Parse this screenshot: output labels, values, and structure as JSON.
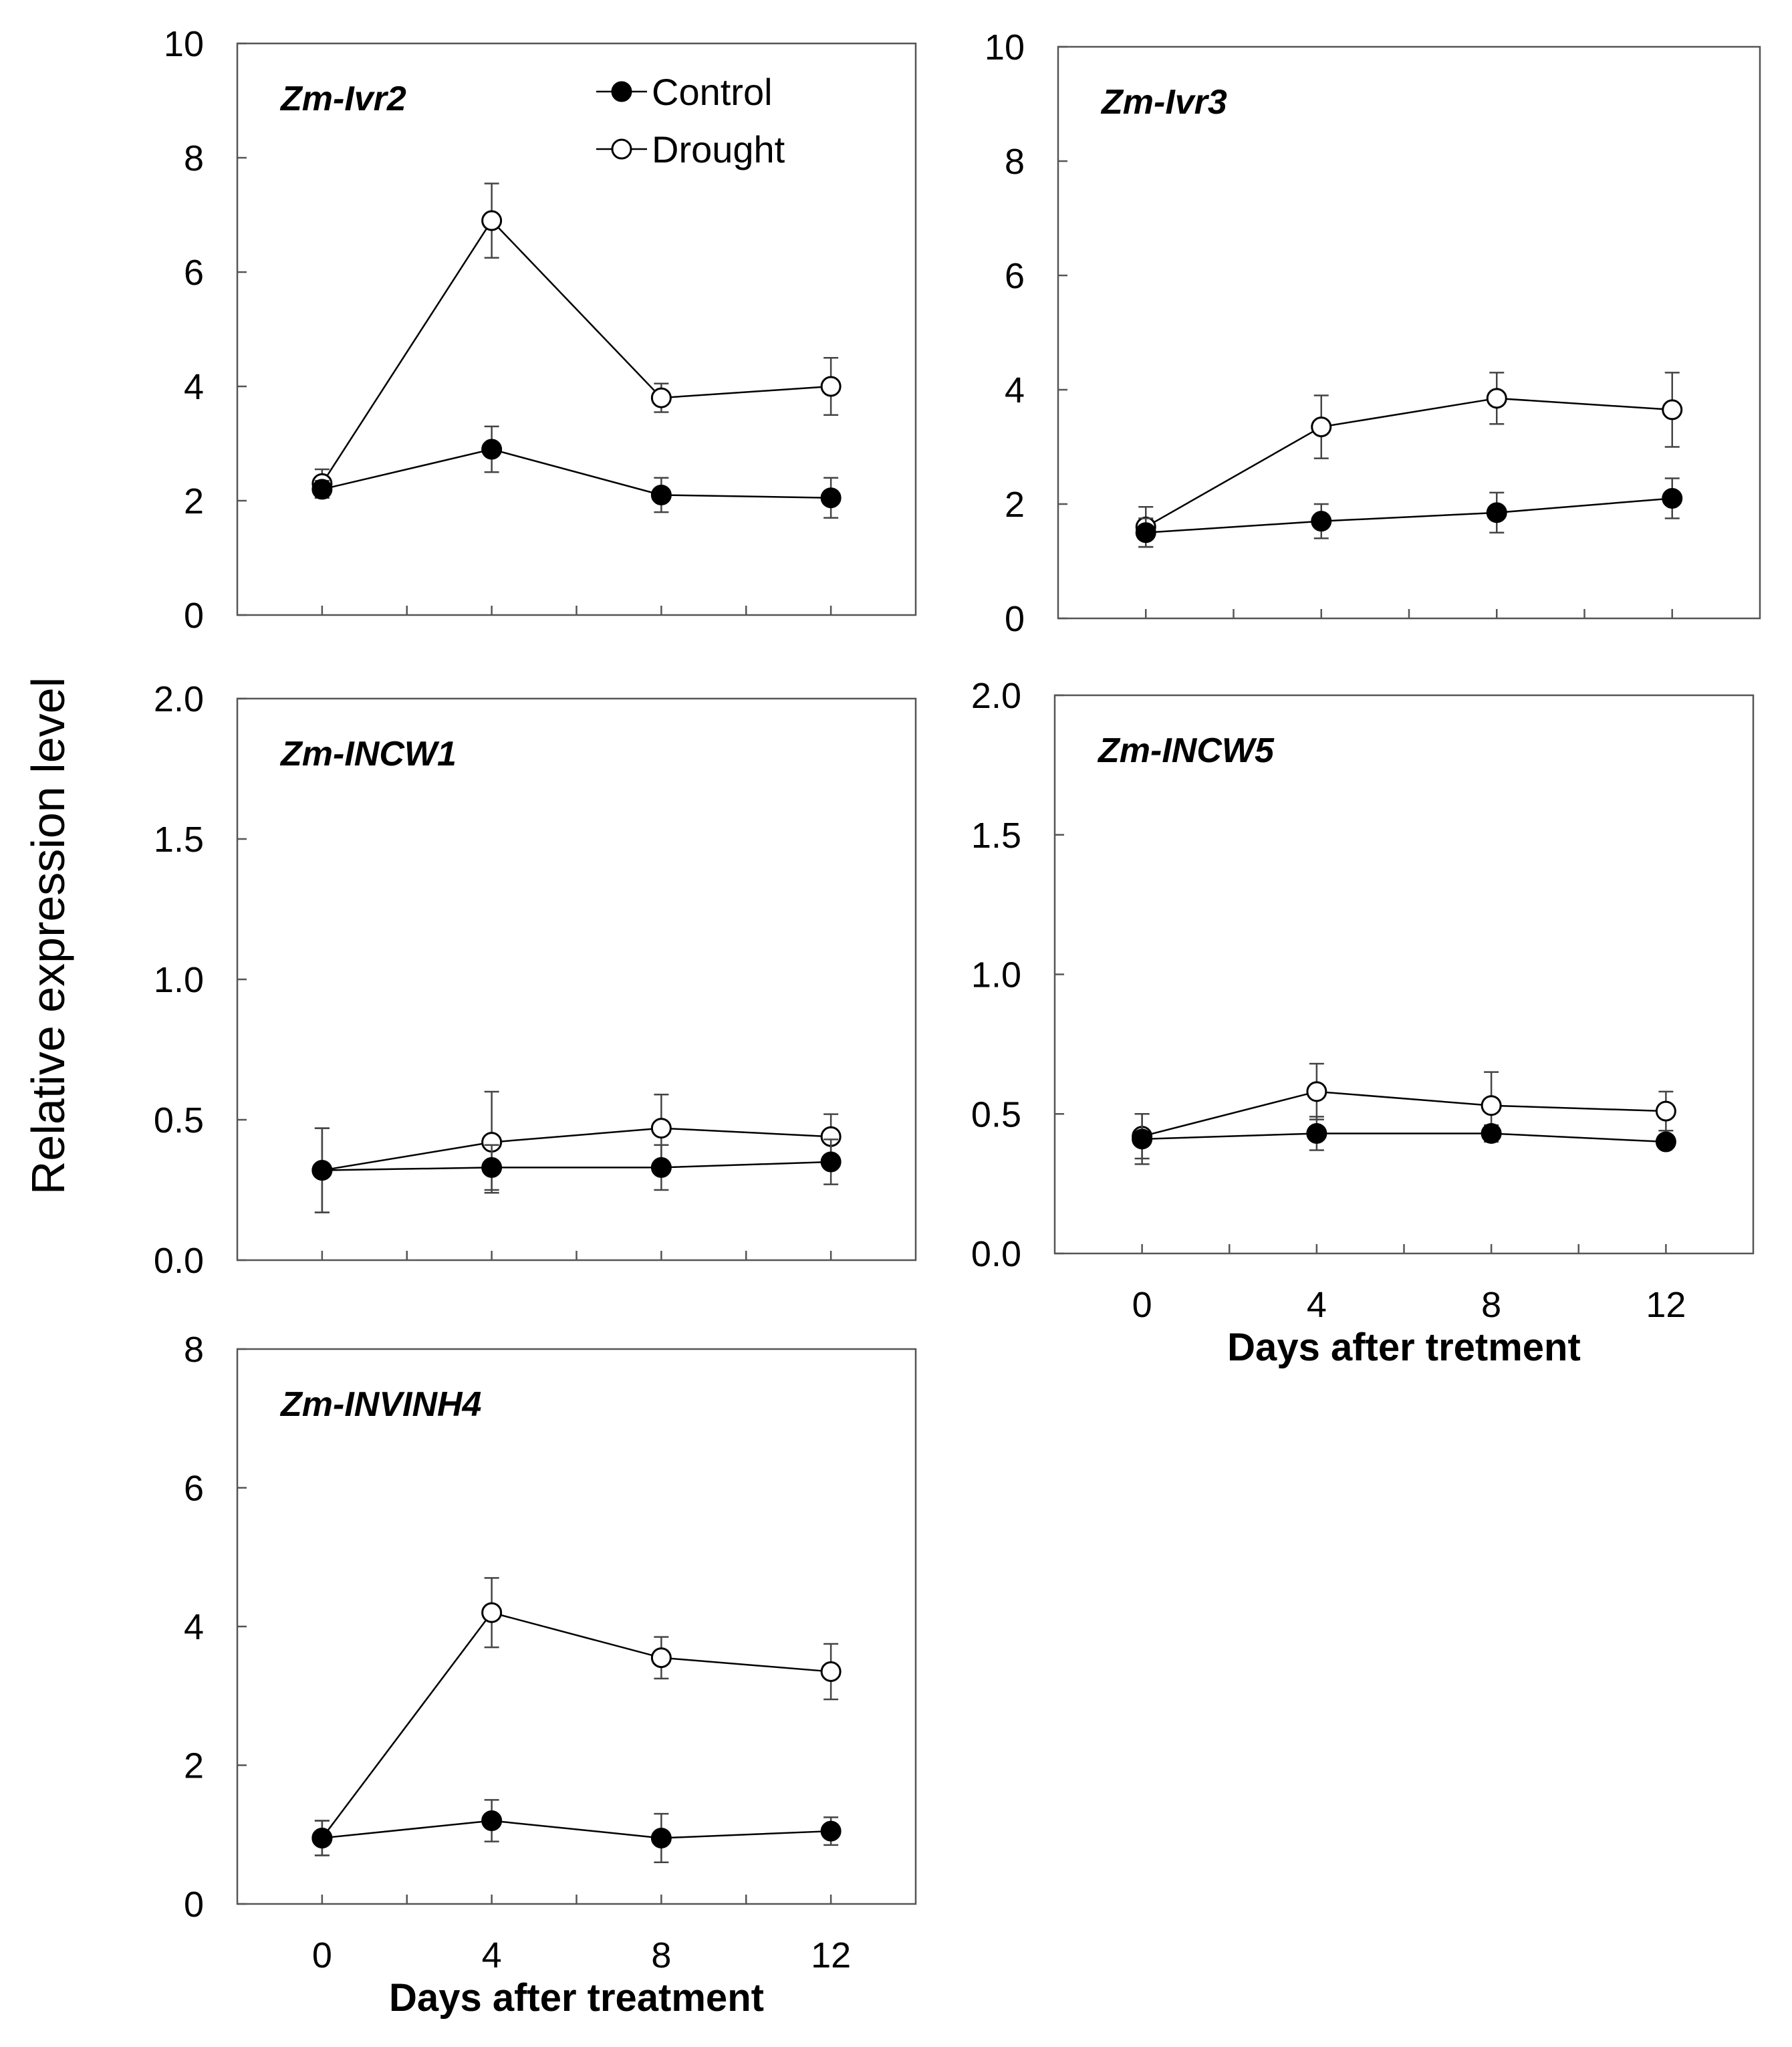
{
  "figure": {
    "ylabel": "Relative expression level",
    "legend": {
      "control_label": "Control",
      "drought_label": "Drought"
    },
    "colors": {
      "control_marker": "#000000",
      "drought_marker": "#ffffff",
      "line": "#000000",
      "background": "#ffffff"
    }
  },
  "chart_data": [
    {
      "type": "line",
      "title": "Zm-Ivr2",
      "xlabel": "",
      "ylabel": "Relative expression level",
      "x": [
        0,
        4,
        8,
        12
      ],
      "x_ticks": [
        "0",
        "4",
        "8",
        "12"
      ],
      "show_x_tick_labels": false,
      "xlim": [
        -2,
        14
      ],
      "ylim": [
        0,
        10
      ],
      "y_ticks": [
        "0",
        "2",
        "4",
        "6",
        "8",
        "10"
      ],
      "grid": false,
      "legend": "top-right",
      "series": [
        {
          "name": "Control",
          "marker": "filled-circle",
          "values": [
            2.2,
            2.9,
            2.1,
            2.05
          ],
          "errors": [
            0.15,
            0.4,
            0.3,
            0.35
          ]
        },
        {
          "name": "Drought",
          "marker": "open-circle",
          "values": [
            2.3,
            6.9,
            3.8,
            4.0
          ],
          "errors": [
            0.25,
            0.65,
            0.25,
            0.5
          ]
        }
      ]
    },
    {
      "type": "line",
      "title": "Zm-Ivr3",
      "xlabel": "",
      "ylabel": "",
      "x": [
        0,
        4,
        8,
        12
      ],
      "x_ticks": [
        "0",
        "4",
        "8",
        "12"
      ],
      "show_x_tick_labels": false,
      "xlim": [
        -2,
        14
      ],
      "ylim": [
        0,
        10
      ],
      "y_ticks": [
        "0",
        "2",
        "4",
        "6",
        "8",
        "10"
      ],
      "grid": false,
      "series": [
        {
          "name": "Control",
          "marker": "filled-circle",
          "values": [
            1.5,
            1.7,
            1.85,
            2.1
          ],
          "errors": [
            0.25,
            0.3,
            0.35,
            0.35
          ]
        },
        {
          "name": "Drought",
          "marker": "open-circle",
          "values": [
            1.6,
            3.35,
            3.85,
            3.65
          ],
          "errors": [
            0.35,
            0.55,
            0.45,
            0.65
          ]
        }
      ]
    },
    {
      "type": "line",
      "title": "Zm-INCW1",
      "xlabel": "",
      "ylabel": "",
      "x": [
        0,
        4,
        8,
        12
      ],
      "x_ticks": [
        "0",
        "4",
        "8",
        "12"
      ],
      "show_x_tick_labels": false,
      "xlim": [
        -2,
        14
      ],
      "ylim": [
        0,
        2
      ],
      "y_ticks": [
        "0.0",
        "0.5",
        "1.0",
        "1.5",
        "2.0"
      ],
      "grid": false,
      "series": [
        {
          "name": "Control",
          "marker": "filled-circle",
          "values": [
            0.32,
            0.33,
            0.33,
            0.35
          ],
          "errors": [
            0.15,
            0.08,
            0.08,
            0.08
          ]
        },
        {
          "name": "Drought",
          "marker": "open-circle",
          "values": [
            0.32,
            0.42,
            0.47,
            0.44
          ],
          "errors": [
            0.15,
            0.18,
            0.12,
            0.08
          ]
        }
      ]
    },
    {
      "type": "line",
      "title": "Zm-INCW5",
      "xlabel": "Days after tretment",
      "ylabel": "",
      "x": [
        0,
        4,
        8,
        12
      ],
      "x_ticks": [
        "0",
        "4",
        "8",
        "12"
      ],
      "show_x_tick_labels": true,
      "xlim": [
        -2,
        14
      ],
      "ylim": [
        0,
        2
      ],
      "y_ticks": [
        "0.0",
        "0.5",
        "1.0",
        "1.5",
        "2.0"
      ],
      "grid": false,
      "series": [
        {
          "name": "Control",
          "marker": "filled-circle",
          "values": [
            0.41,
            0.43,
            0.43,
            0.4
          ],
          "errors": [
            0.09,
            0.06,
            0.03,
            0.02
          ]
        },
        {
          "name": "Drought",
          "marker": "open-circle",
          "values": [
            0.42,
            0.58,
            0.53,
            0.51
          ],
          "errors": [
            0.08,
            0.1,
            0.12,
            0.07
          ]
        }
      ]
    },
    {
      "type": "line",
      "title": "Zm-INVINH4",
      "xlabel": "Days after treatment",
      "ylabel": "",
      "x": [
        0,
        4,
        8,
        12
      ],
      "x_ticks": [
        "0",
        "4",
        "8",
        "12"
      ],
      "show_x_tick_labels": true,
      "xlim": [
        -2,
        14
      ],
      "ylim": [
        0,
        8
      ],
      "y_ticks": [
        "0",
        "2",
        "4",
        "6",
        "8"
      ],
      "grid": false,
      "series": [
        {
          "name": "Control",
          "marker": "filled-circle",
          "values": [
            0.95,
            1.2,
            0.95,
            1.05
          ],
          "errors": [
            0.25,
            0.3,
            0.35,
            0.2
          ]
        },
        {
          "name": "Drought",
          "marker": "open-circle",
          "values": [
            0.95,
            4.2,
            3.55,
            3.35
          ],
          "errors": [
            0.25,
            0.5,
            0.3,
            0.4
          ]
        }
      ]
    }
  ]
}
